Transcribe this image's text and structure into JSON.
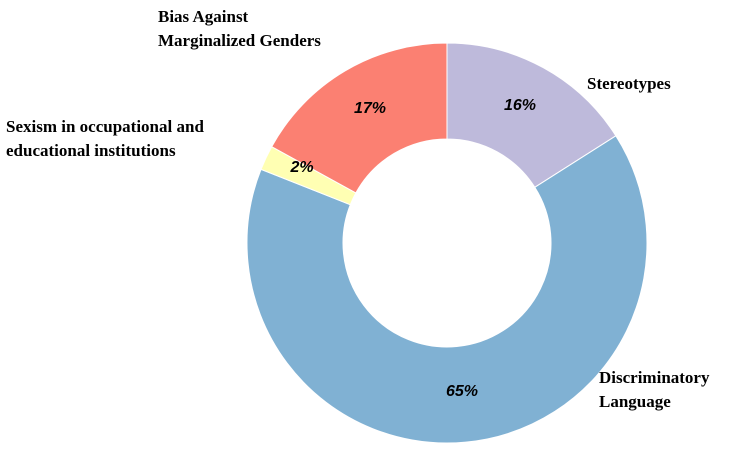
{
  "chart_data": {
    "type": "pie",
    "title": "",
    "donut": true,
    "start_angle_deg": 0,
    "direction": "clockwise",
    "slices": [
      {
        "label_lines": [
          "Stereotypes"
        ],
        "value": 16,
        "value_label": "16%",
        "color": "#bebadb"
      },
      {
        "label_lines": [
          "Discriminatory",
          "Language"
        ],
        "value": 65,
        "value_label": "65%",
        "color": "#80b1d3"
      },
      {
        "label_lines": [
          "Sexism in occupational and",
          "educational institutions"
        ],
        "value": 2,
        "value_label": "2%",
        "color": "#ffffb3"
      },
      {
        "label_lines": [
          "Bias Against",
          "Marginalized  Genders"
        ],
        "value": 17,
        "value_label": "17%",
        "color": "#fb8072"
      }
    ],
    "legend": "none"
  }
}
